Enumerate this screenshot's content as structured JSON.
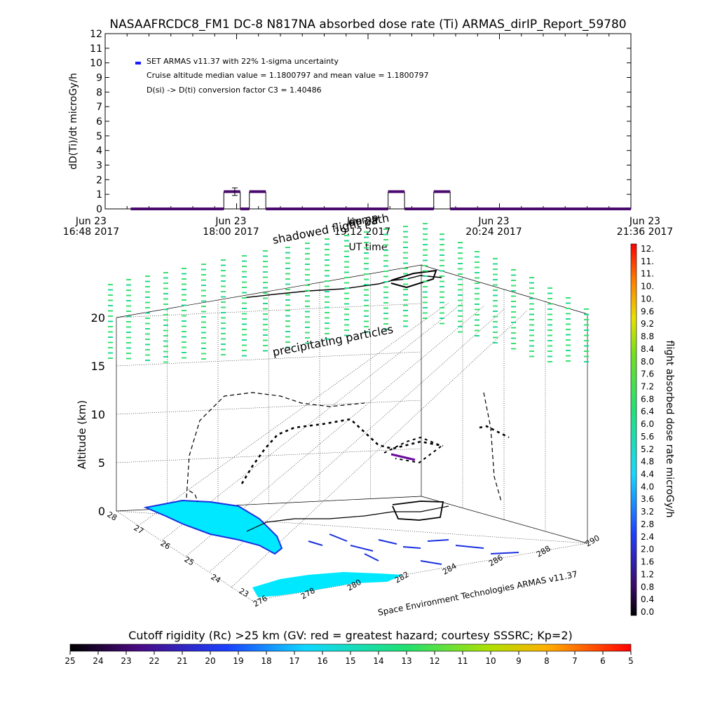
{
  "header": {
    "title": "NASAAFRCDC8_FM1 DC-8   N817NA absorbed dose rate (Ti) ARMAS_dirIP_Report_59780"
  },
  "chart_data": [
    {
      "type": "line",
      "ylabel": "dD(Ti)/dt microGy/h",
      "xlabel": "UT time",
      "ylim": [
        0,
        12
      ],
      "yticks": [
        0,
        1,
        2,
        3,
        4,
        5,
        6,
        7,
        8,
        9,
        10,
        11,
        12
      ],
      "xlim_minutes": [
        0,
        288
      ],
      "xticks": [
        {
          "min": 0,
          "line1": "Jun 23",
          "line2": "16:48 2017"
        },
        {
          "min": 72,
          "line1": "Jun 23",
          "line2": "18:00 2017"
        },
        {
          "min": 144,
          "line1": "Jun 23",
          "line2": "19:12 2017"
        },
        {
          "min": 216,
          "line1": "Jun 23",
          "line2": "20:24 2017"
        },
        {
          "min": 288,
          "line1": "Jun 23",
          "line2": "21:36 2017"
        }
      ],
      "legend": {
        "series_label": "SET ARMAS v11.37 with 22% 1-sigma uncertainty",
        "median_line": "Cruise altitude median value = 1.1800797 and mean value = 1.1800797",
        "conversion_line": "D(si) -> D(ti) conversion factor C3 = 1.40486",
        "marker_color": "#1a1aff"
      },
      "series": [
        {
          "baseline_value": 0,
          "baseline_range": [
            14,
            288
          ],
          "elevated_value": 1.18,
          "elevated_segments": [
            [
              65,
              74
            ],
            [
              79,
              88
            ],
            [
              155,
              164
            ],
            [
              180,
              189
            ]
          ],
          "error_bar": {
            "min": 71,
            "value": 1.18,
            "low": 0.92,
            "high": 1.44
          },
          "color": "#4b0a6e"
        }
      ]
    },
    {
      "type": "scatter",
      "zlabel": "Altitude (km)",
      "zticks": [
        0,
        5,
        10,
        15,
        20
      ],
      "lat_ticks": [
        "23",
        "24",
        "25",
        "26",
        "27",
        "28"
      ],
      "lon_ticks": [
        "276",
        "278",
        "280",
        "282",
        "284",
        "286",
        "288",
        "290"
      ],
      "annotations": [
        "shadowed flight path",
        "dump",
        "precipitating particles"
      ],
      "credit": "Space Environment Technologies ARMAS v11.37"
    },
    {
      "type": "heatmap",
      "label": "flight absorbed dose rate microGy/h",
      "ticks": [
        "12.",
        "11.",
        "11.",
        "10.",
        "10.",
        "9.6",
        "9.2",
        "8.8",
        "8.4",
        "8.0",
        "7.6",
        "7.2",
        "6.8",
        "6.4",
        "6.0",
        "5.6",
        "5.2",
        "4.8",
        "4.4",
        "4.0",
        "3.6",
        "3.2",
        "2.8",
        "2.4",
        "2.0",
        "1.6",
        "1.2",
        "0.8",
        "0.4",
        "0.0"
      ]
    },
    {
      "type": "heatmap",
      "label": "Cutoff rigidity (Rc) >25 km (GV: red = greatest hazard; courtesy SSSRC; Kp=2)",
      "ticks": [
        "25",
        "24",
        "23",
        "22",
        "21",
        "20",
        "19",
        "18",
        "17",
        "16",
        "15",
        "14",
        "13",
        "12",
        "11",
        "10",
        "9",
        "8",
        "7",
        "6",
        "5"
      ]
    }
  ]
}
